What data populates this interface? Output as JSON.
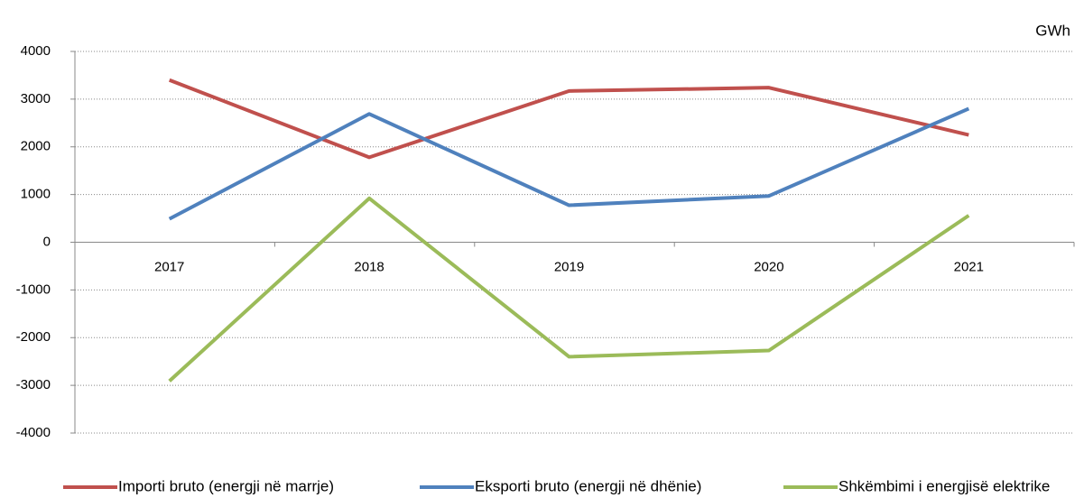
{
  "chart_data": {
    "type": "line",
    "unit": "GWh",
    "categories": [
      "2017",
      "2018",
      "2019",
      "2020",
      "2021"
    ],
    "series": [
      {
        "name": "Importi bruto (energji në marrje)",
        "color": "#c0504d",
        "values": [
          3400,
          1780,
          3170,
          3240,
          2250
        ]
      },
      {
        "name": "Eksporti bruto (energji në dhënie)",
        "color": "#4f81bd",
        "values": [
          490,
          2690,
          775,
          970,
          2800
        ]
      },
      {
        "name": "Shkëmbimi i energjisë elektrike",
        "color": "#9bbb59",
        "values": [
          -2910,
          920,
          -2400,
          -2270,
          560
        ]
      }
    ],
    "ylim": [
      -4000,
      4000
    ],
    "yticks": [
      -4000,
      -3000,
      -2000,
      -1000,
      0,
      1000,
      2000,
      3000,
      4000
    ],
    "grid": true
  }
}
